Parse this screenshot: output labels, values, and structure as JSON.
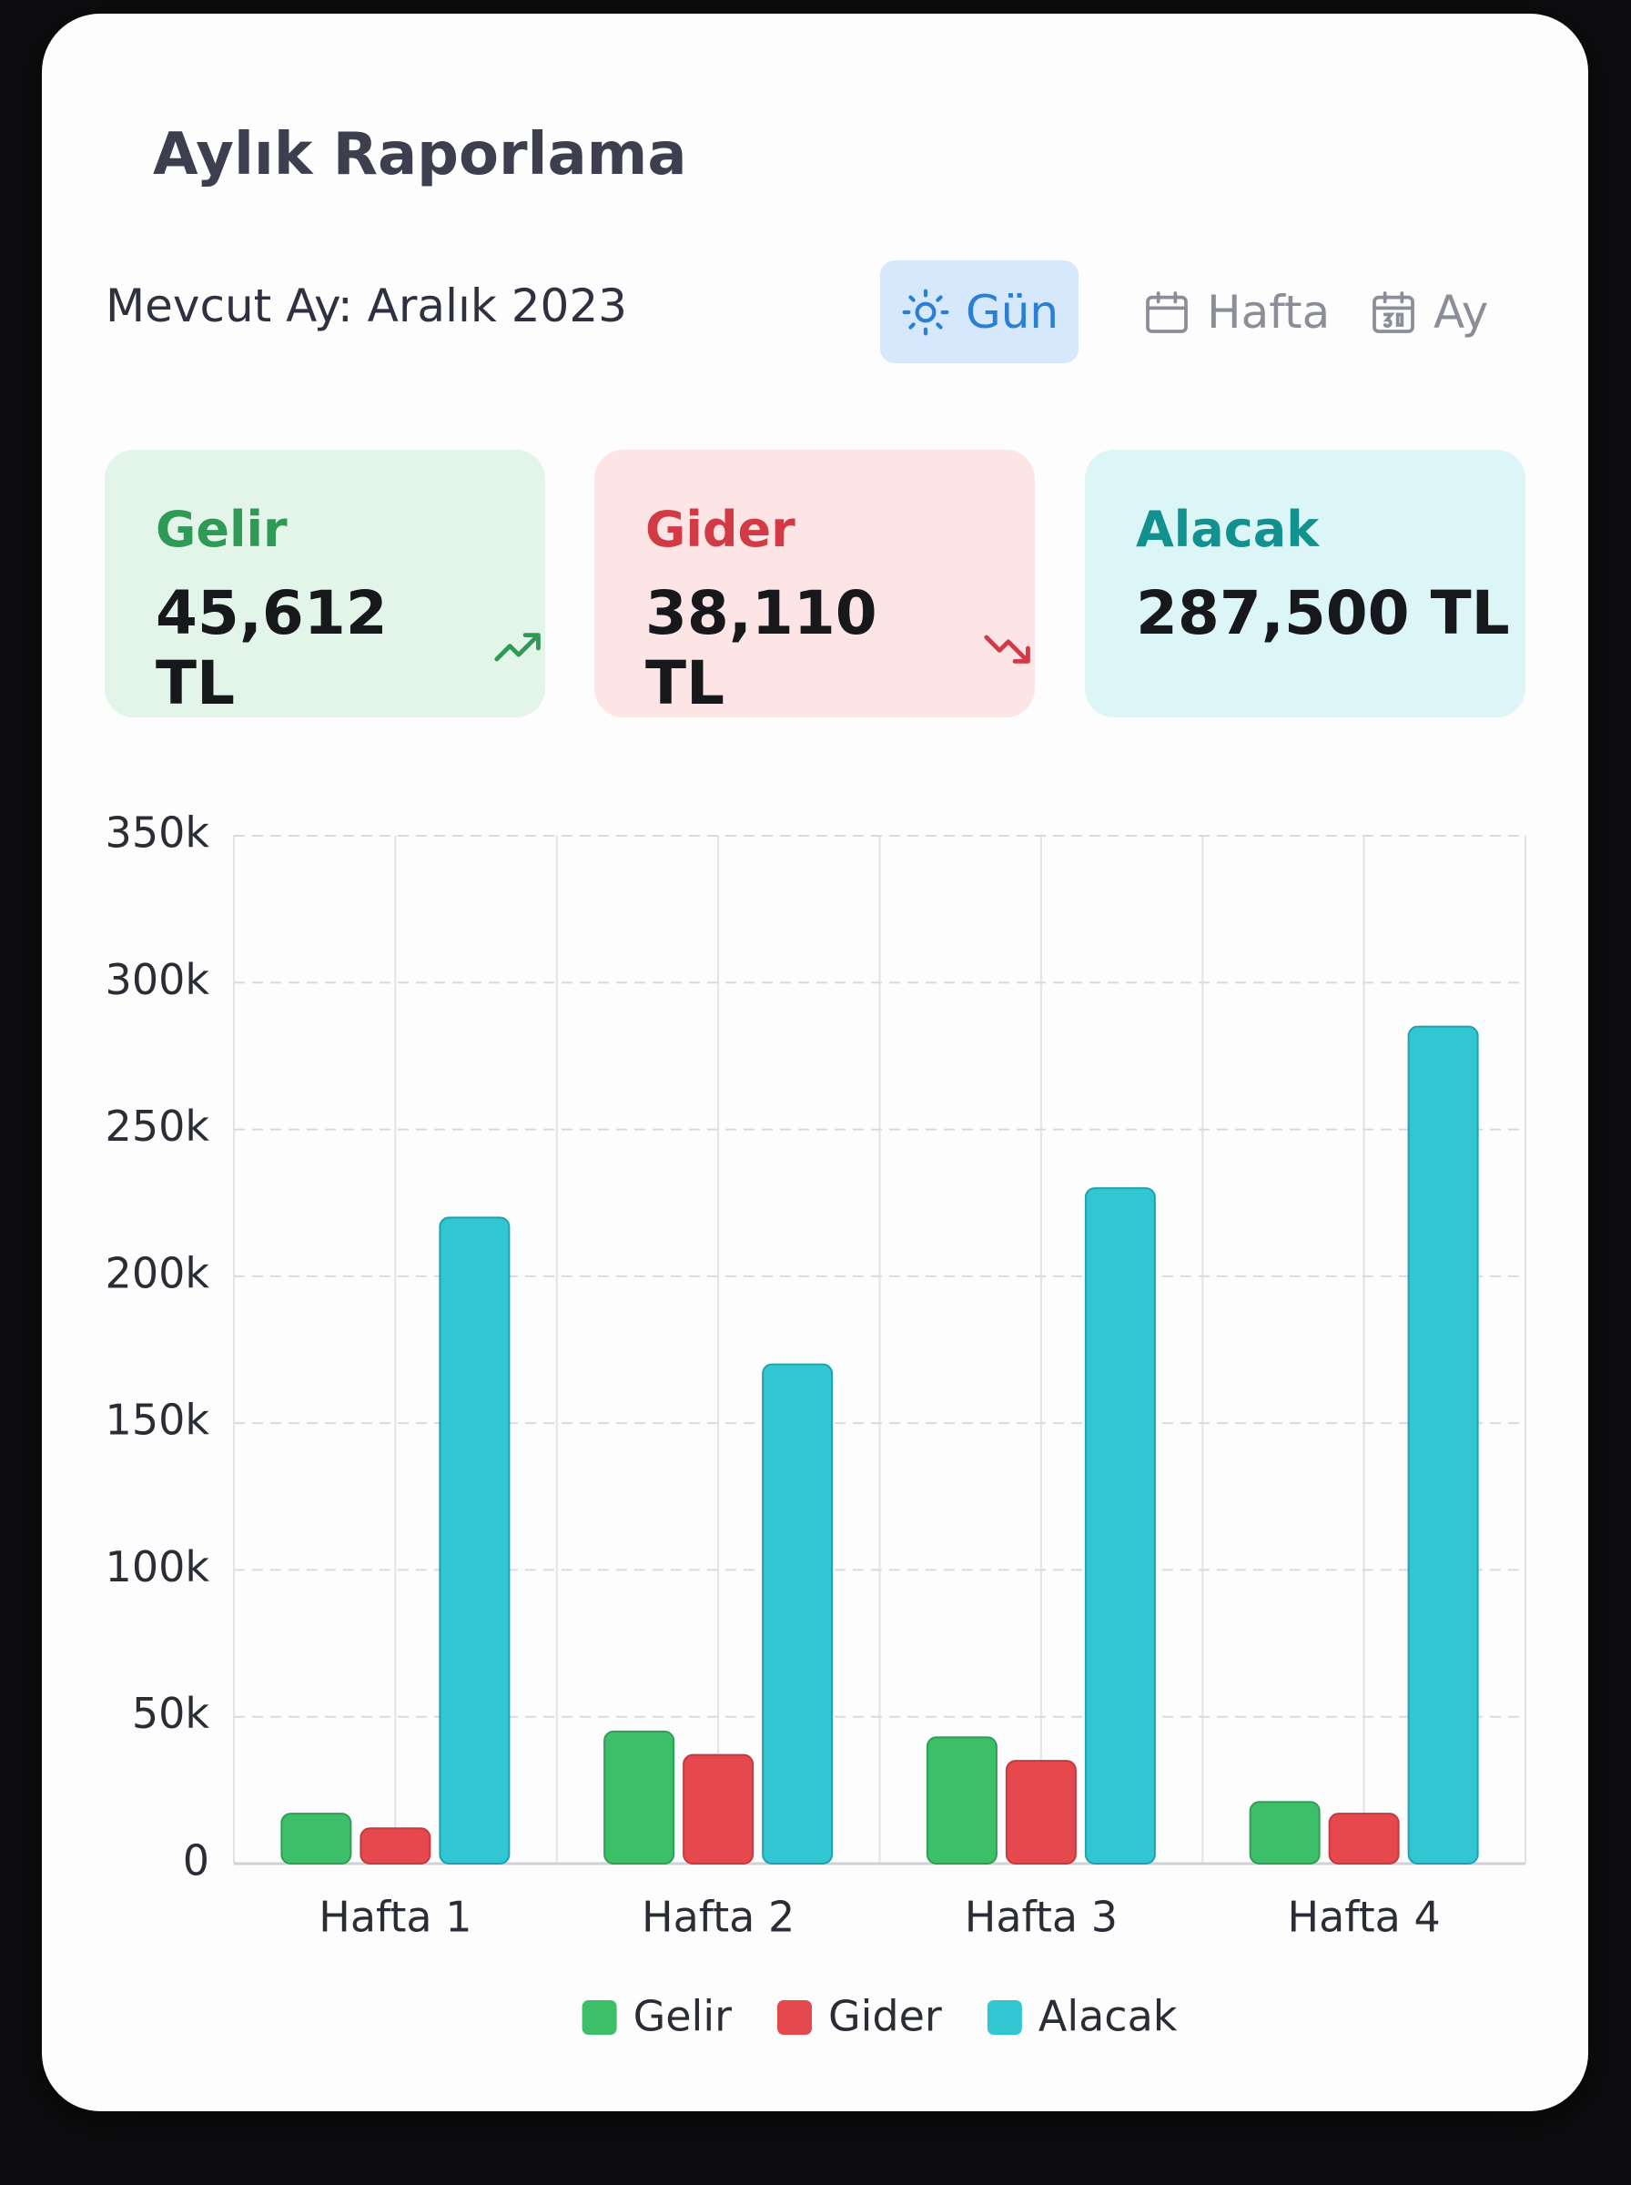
{
  "header": {
    "title": "Aylık Raporlama",
    "subtitle": "Mevcut Ay: Aralık 2023"
  },
  "tabs": [
    "Gün",
    "Hafta",
    "Ay"
  ],
  "stats": [
    {
      "label": "Gelir",
      "value": "45,612 TL"
    },
    {
      "label": "Gider",
      "value": "38,110 TL"
    },
    {
      "label": "Alacak",
      "value": "287,500 TL"
    }
  ],
  "chart_data": {
    "type": "bar",
    "categories": [
      "Hafta 1",
      "Hafta 2",
      "Hafta 3",
      "Hafta 4"
    ],
    "series": [
      {
        "name": "Gelir",
        "color": "#3dbf6a",
        "values": [
          17000,
          45000,
          43000,
          21000
        ]
      },
      {
        "name": "Gider",
        "color": "#e5484d",
        "values": [
          12000,
          37000,
          35000,
          17000
        ]
      },
      {
        "name": "Alacak",
        "color": "#32c5d2",
        "values": [
          220000,
          170000,
          230000,
          285000
        ]
      }
    ],
    "ylim": [
      0,
      350000
    ],
    "yticks": [
      0,
      {
        "value": 50000,
        "label": "50k"
      },
      {
        "value": 100000,
        "label": "100k"
      },
      {
        "value": 150000,
        "label": "150k"
      },
      {
        "value": 200000,
        "label": "200k"
      },
      {
        "value": 250000,
        "label": "250k"
      },
      {
        "value": 300000,
        "label": "300k"
      },
      {
        "value": 350000,
        "label": "350k"
      }
    ],
    "grid": true,
    "legend": "bottom"
  }
}
